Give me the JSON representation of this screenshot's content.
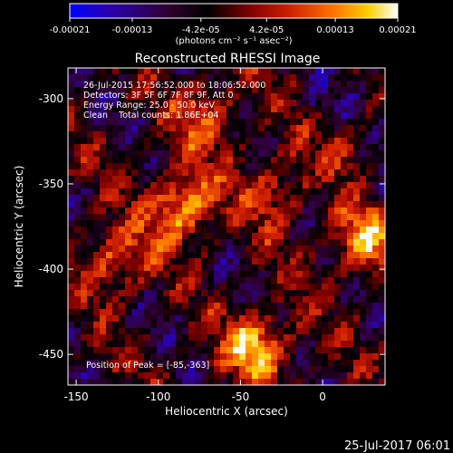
{
  "colorbar": {
    "ticks": [
      "-0.00021",
      "-0.00013",
      "-4.2e-05",
      "4.2e-05",
      "0.00013",
      "0.00021"
    ],
    "tick_values": [
      -0.00021,
      -0.00013,
      -4.2e-05,
      4.2e-05,
      0.00013,
      0.00021
    ],
    "range": [
      -0.00021,
      0.00021
    ],
    "unit_label": "(photons cm⁻² s⁻¹ asec⁻²)",
    "palette": [
      "#0000ff",
      "#2a00b0",
      "#300030",
      "#000000",
      "#800000",
      "#d02000",
      "#ff7000",
      "#ffd000",
      "#ffffff"
    ]
  },
  "chart_data": {
    "type": "heatmap",
    "title": "Reconstructed RHESSI Image",
    "xlabel": "Heliocentric X (arcsec)",
    "ylabel": "Heliocentric Y (arcsec)",
    "xlim": [
      -155,
      38
    ],
    "ylim": [
      -468,
      -282
    ],
    "x_ticks": [
      -150,
      -100,
      -50,
      0
    ],
    "x_tick_labels": [
      "-150",
      "-100",
      "-50",
      "0"
    ],
    "y_ticks": [
      -300,
      -350,
      -400,
      -450
    ],
    "y_tick_labels": [
      "-300",
      "-350",
      "-400",
      "-450"
    ],
    "annotations": [
      "26-Jul-2015 17:56:52.000 to 18:06:52.000",
      "Detectors: 3F 5F 6F 7F 8F 9F, Att 0",
      "Energy Range: 25.0 - 50.0 keV",
      "Clean    Total counts: 1.86E+04"
    ],
    "peak_label": "Position of Peak = [-85,-363]",
    "peak": [
      -85,
      -363
    ],
    "bright_regions": [
      {
        "x": -85,
        "y": -363,
        "intensity": 1.0
      },
      {
        "x": -40,
        "y": -445,
        "intensity": 0.95
      },
      {
        "x": 25,
        "y": -383,
        "intensity": 0.85
      },
      {
        "x": -125,
        "y": -395,
        "intensity": 0.7
      },
      {
        "x": -70,
        "y": -310,
        "intensity": 0.6
      },
      {
        "x": -30,
        "y": -355,
        "intensity": 0.55
      },
      {
        "x": 15,
        "y": -330,
        "intensity": 0.5
      }
    ]
  },
  "footer": {
    "timestamp": "25-Jul-2017 06:01"
  }
}
